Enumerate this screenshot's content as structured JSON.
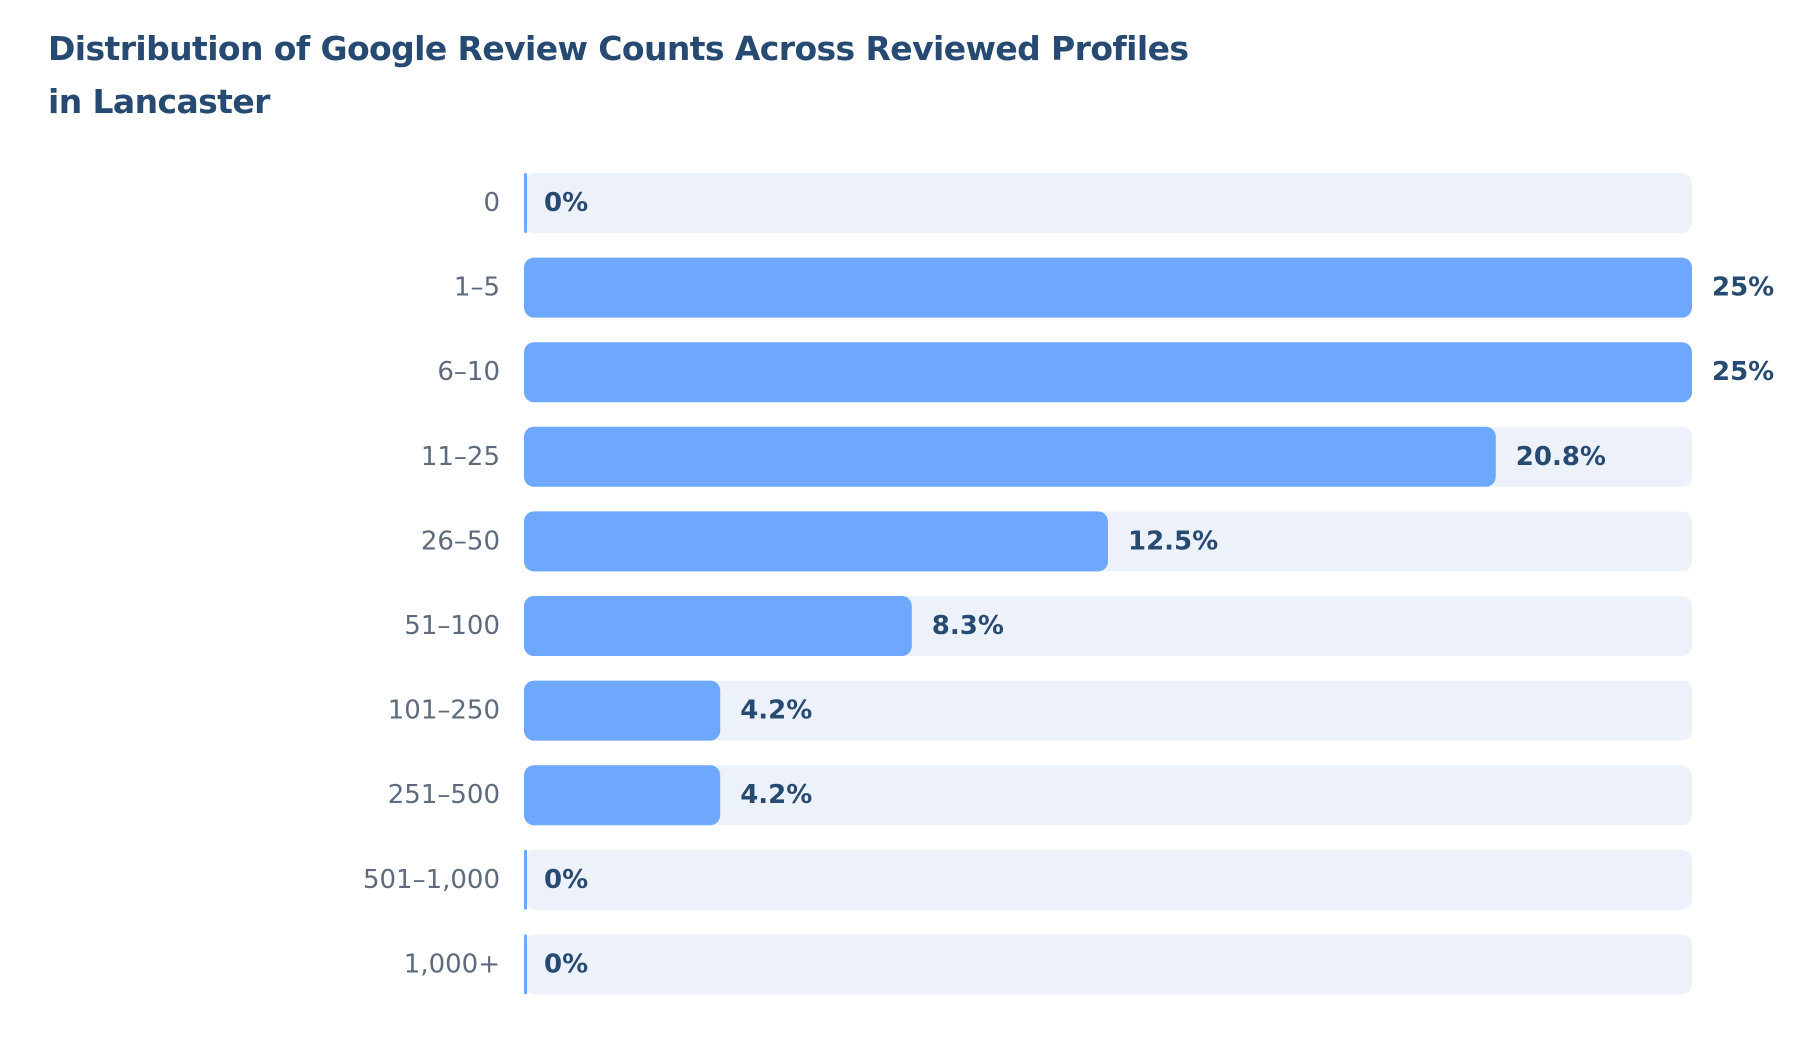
{
  "chart_data": {
    "type": "bar",
    "orientation": "horizontal",
    "title_lines": [
      "Distribution of Google Review Counts Across Reviewed Profiles",
      "in Lancaster"
    ],
    "categories": [
      "0",
      "1–5",
      "6–10",
      "11–25",
      "26–50",
      "51–100",
      "101–250",
      "251–500",
      "501–1,000",
      "1,000+"
    ],
    "values": [
      0,
      25,
      25,
      20.8,
      12.5,
      8.3,
      4.2,
      4.2,
      0,
      0
    ],
    "value_labels": [
      "0%",
      "25%",
      "25%",
      "20.8%",
      "12.5%",
      "8.3%",
      "4.2%",
      "4.2%",
      "0%",
      "0%"
    ],
    "xlim": [
      0,
      25
    ],
    "unit": "%",
    "grid": false,
    "legend": "none",
    "colors": {
      "bar": "#6ea8fe",
      "track": "#edf2fa",
      "title": "#264a72",
      "value_label": "#264a72",
      "category_label": "#5d6b7c"
    }
  }
}
